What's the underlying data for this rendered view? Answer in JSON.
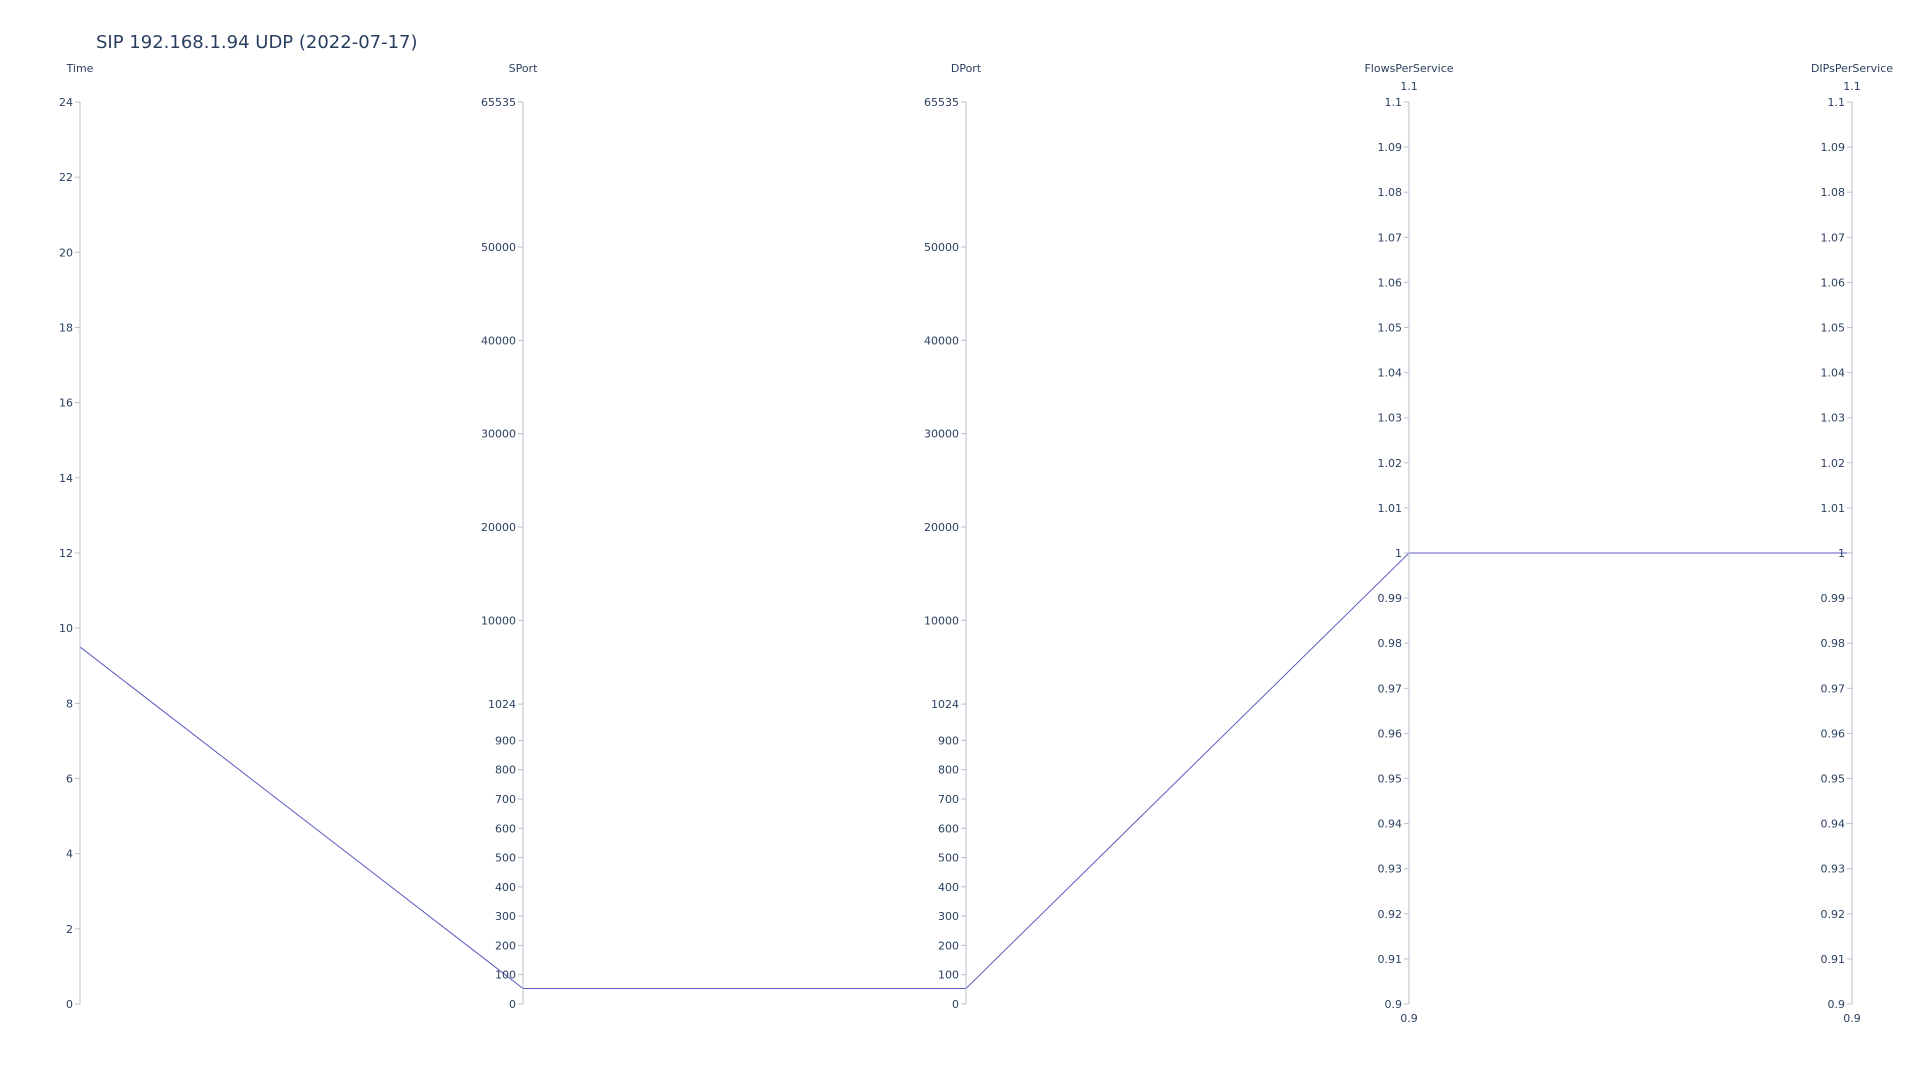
{
  "chart_data": {
    "type": "parallel_coordinates",
    "title": "SIP 192.168.1.94 UDP (2022-07-17)",
    "line_color": "#5b5bc2",
    "axis_color": "#b8c0cc",
    "text_color": "#2a3f5f",
    "dimensions": [
      {
        "label": "Time",
        "ticks": [
          "0",
          "2",
          "4",
          "6",
          "8",
          "10",
          "12",
          "14",
          "16",
          "18",
          "20",
          "22",
          "24"
        ],
        "tick_values": [
          0,
          2,
          4,
          6,
          8,
          10,
          12,
          14,
          16,
          18,
          20,
          22,
          24
        ],
        "range": [
          0,
          24
        ],
        "range_labels": null
      },
      {
        "label": "SPort",
        "ticks": [
          "0",
          "100",
          "200",
          "300",
          "400",
          "500",
          "600",
          "700",
          "800",
          "900",
          "1024",
          "10000",
          "20000",
          "30000",
          "40000",
          "50000",
          "65535"
        ],
        "tick_values": [
          0,
          100,
          200,
          300,
          400,
          500,
          600,
          700,
          800,
          900,
          1024,
          10000,
          20000,
          30000,
          40000,
          50000,
          65535
        ],
        "scale": "piecewise",
        "range_labels": null
      },
      {
        "label": "DPort",
        "ticks": [
          "0",
          "100",
          "200",
          "300",
          "400",
          "500",
          "600",
          "700",
          "800",
          "900",
          "1024",
          "10000",
          "20000",
          "30000",
          "40000",
          "50000",
          "65535"
        ],
        "tick_values": [
          0,
          100,
          200,
          300,
          400,
          500,
          600,
          700,
          800,
          900,
          1024,
          10000,
          20000,
          30000,
          40000,
          50000,
          65535
        ],
        "scale": "piecewise",
        "range_labels": null
      },
      {
        "label": "FlowsPerService",
        "ticks": [
          "0.9",
          "0.91",
          "0.92",
          "0.93",
          "0.94",
          "0.95",
          "0.96",
          "0.97",
          "0.98",
          "0.99",
          "1",
          "1.01",
          "1.02",
          "1.03",
          "1.04",
          "1.05",
          "1.06",
          "1.07",
          "1.08",
          "1.09",
          "1.1"
        ],
        "tick_values": [
          0.9,
          0.91,
          0.92,
          0.93,
          0.94,
          0.95,
          0.96,
          0.97,
          0.98,
          0.99,
          1,
          1.01,
          1.02,
          1.03,
          1.04,
          1.05,
          1.06,
          1.07,
          1.08,
          1.09,
          1.1
        ],
        "range": [
          0.9,
          1.1
        ],
        "range_labels": [
          "0.9",
          "1.1"
        ]
      },
      {
        "label": "DIPsPerService",
        "ticks": [
          "0.9",
          "0.91",
          "0.92",
          "0.93",
          "0.94",
          "0.95",
          "0.96",
          "0.97",
          "0.98",
          "0.99",
          "1",
          "1.01",
          "1.02",
          "1.03",
          "1.04",
          "1.05",
          "1.06",
          "1.07",
          "1.08",
          "1.09",
          "1.1"
        ],
        "tick_values": [
          0.9,
          0.91,
          0.92,
          0.93,
          0.94,
          0.95,
          0.96,
          0.97,
          0.98,
          0.99,
          1,
          1.01,
          1.02,
          1.03,
          1.04,
          1.05,
          1.06,
          1.07,
          1.08,
          1.09,
          1.1
        ],
        "range": [
          0.9,
          1.1
        ],
        "range_labels": [
          "0.9",
          "1.1"
        ]
      }
    ],
    "records": [
      {
        "Time": 9.5,
        "SPort": 53,
        "DPort": 53,
        "FlowsPerService": 1,
        "DIPsPerService": 1
      }
    ]
  }
}
